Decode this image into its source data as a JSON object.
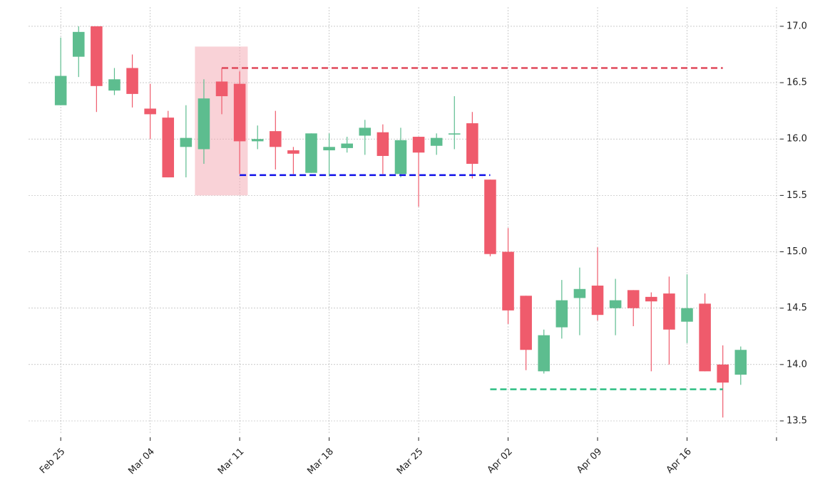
{
  "chart_data": {
    "type": "candlestick",
    "x": [
      0,
      1,
      2,
      3,
      4,
      5,
      6,
      7,
      8,
      9,
      10,
      11,
      12,
      13,
      14,
      15,
      16,
      17,
      18,
      19,
      20,
      21,
      22,
      23,
      24,
      25,
      26,
      27,
      28,
      29,
      30,
      31,
      32,
      33,
      34,
      35,
      36,
      37,
      38
    ],
    "open": [
      16.3,
      16.73,
      17.0,
      16.43,
      16.63,
      16.27,
      16.19,
      15.93,
      15.91,
      16.51,
      16.49,
      15.98,
      16.07,
      15.9,
      15.7,
      15.9,
      15.92,
      16.03,
      16.06,
      15.69,
      16.02,
      15.94,
      16.04,
      16.14,
      15.64,
      15.0,
      14.61,
      13.94,
      14.33,
      14.59,
      14.7,
      14.5,
      14.66,
      14.6,
      14.63,
      14.38,
      14.54,
      14.0,
      13.91
    ],
    "high": [
      16.9,
      17.0,
      17.0,
      16.63,
      16.75,
      16.49,
      16.25,
      16.3,
      16.53,
      16.63,
      16.6,
      16.12,
      16.25,
      15.93,
      16.05,
      16.05,
      16.02,
      16.17,
      16.13,
      16.1,
      16.02,
      16.05,
      16.38,
      16.24,
      15.64,
      15.21,
      14.61,
      14.31,
      14.75,
      14.86,
      15.04,
      14.76,
      14.66,
      14.64,
      14.78,
      14.8,
      14.63,
      14.17,
      14.16
    ],
    "low": [
      16.3,
      16.55,
      16.24,
      16.39,
      16.28,
      16.0,
      15.66,
      15.66,
      15.78,
      16.22,
      15.69,
      15.91,
      15.73,
      15.69,
      15.7,
      15.67,
      15.88,
      15.86,
      15.69,
      15.66,
      15.4,
      15.86,
      15.91,
      15.65,
      14.96,
      14.36,
      13.95,
      13.92,
      14.23,
      14.26,
      14.39,
      14.26,
      14.34,
      13.94,
      14.0,
      14.19,
      13.94,
      13.53,
      13.82
    ],
    "close": [
      16.56,
      16.95,
      16.47,
      16.53,
      16.4,
      16.22,
      15.66,
      16.01,
      16.36,
      16.38,
      15.98,
      16.0,
      15.93,
      15.87,
      16.05,
      15.93,
      15.96,
      16.1,
      15.85,
      15.99,
      15.88,
      16.01,
      16.05,
      15.78,
      14.98,
      14.48,
      14.13,
      14.26,
      14.57,
      14.67,
      14.44,
      14.57,
      14.5,
      14.56,
      14.31,
      14.5,
      13.94,
      13.84,
      14.13
    ],
    "up_color": "#5dbd8f",
    "down_color": "#ef5b6c",
    "xlim": [
      -1.8,
      40.2
    ],
    "xticks": [
      {
        "value": 0,
        "label": "Feb 25"
      },
      {
        "value": 5,
        "label": "Mar 04"
      },
      {
        "value": 10,
        "label": "Mar 11"
      },
      {
        "value": 15,
        "label": "Mar 18"
      },
      {
        "value": 20,
        "label": "Mar 25"
      },
      {
        "value": 25,
        "label": "Apr 02"
      },
      {
        "value": 30,
        "label": "Apr 09"
      },
      {
        "value": 35,
        "label": "Apr 16"
      },
      {
        "value": 40,
        "label": null
      }
    ],
    "ylim": [
      13.38,
      17.17
    ],
    "yticks": [
      {
        "value": 13.5,
        "label": "13.5"
      },
      {
        "value": 14,
        "label": "14.0"
      },
      {
        "value": 14.5,
        "label": "14.5"
      },
      {
        "value": 15,
        "label": "15.0"
      },
      {
        "value": 15.5,
        "label": "15.5"
      },
      {
        "value": 16,
        "label": "16.0"
      },
      {
        "value": 16.5,
        "label": "16.5"
      },
      {
        "value": 17,
        "label": "17.0"
      }
    ],
    "grid": true,
    "highlight": {
      "x": [
        7.5,
        10.45
      ],
      "y": [
        15.5,
        16.82
      ],
      "color": "#f4a6b0"
    },
    "levels": [
      {
        "value": 16.63,
        "x": [
          9,
          37
        ],
        "color": "#e0485a"
      },
      {
        "value": 15.68,
        "x": [
          10,
          24
        ],
        "color": "#1010e8"
      },
      {
        "value": 13.78,
        "x": [
          24,
          37
        ],
        "color": "#2fbf84"
      }
    ]
  }
}
